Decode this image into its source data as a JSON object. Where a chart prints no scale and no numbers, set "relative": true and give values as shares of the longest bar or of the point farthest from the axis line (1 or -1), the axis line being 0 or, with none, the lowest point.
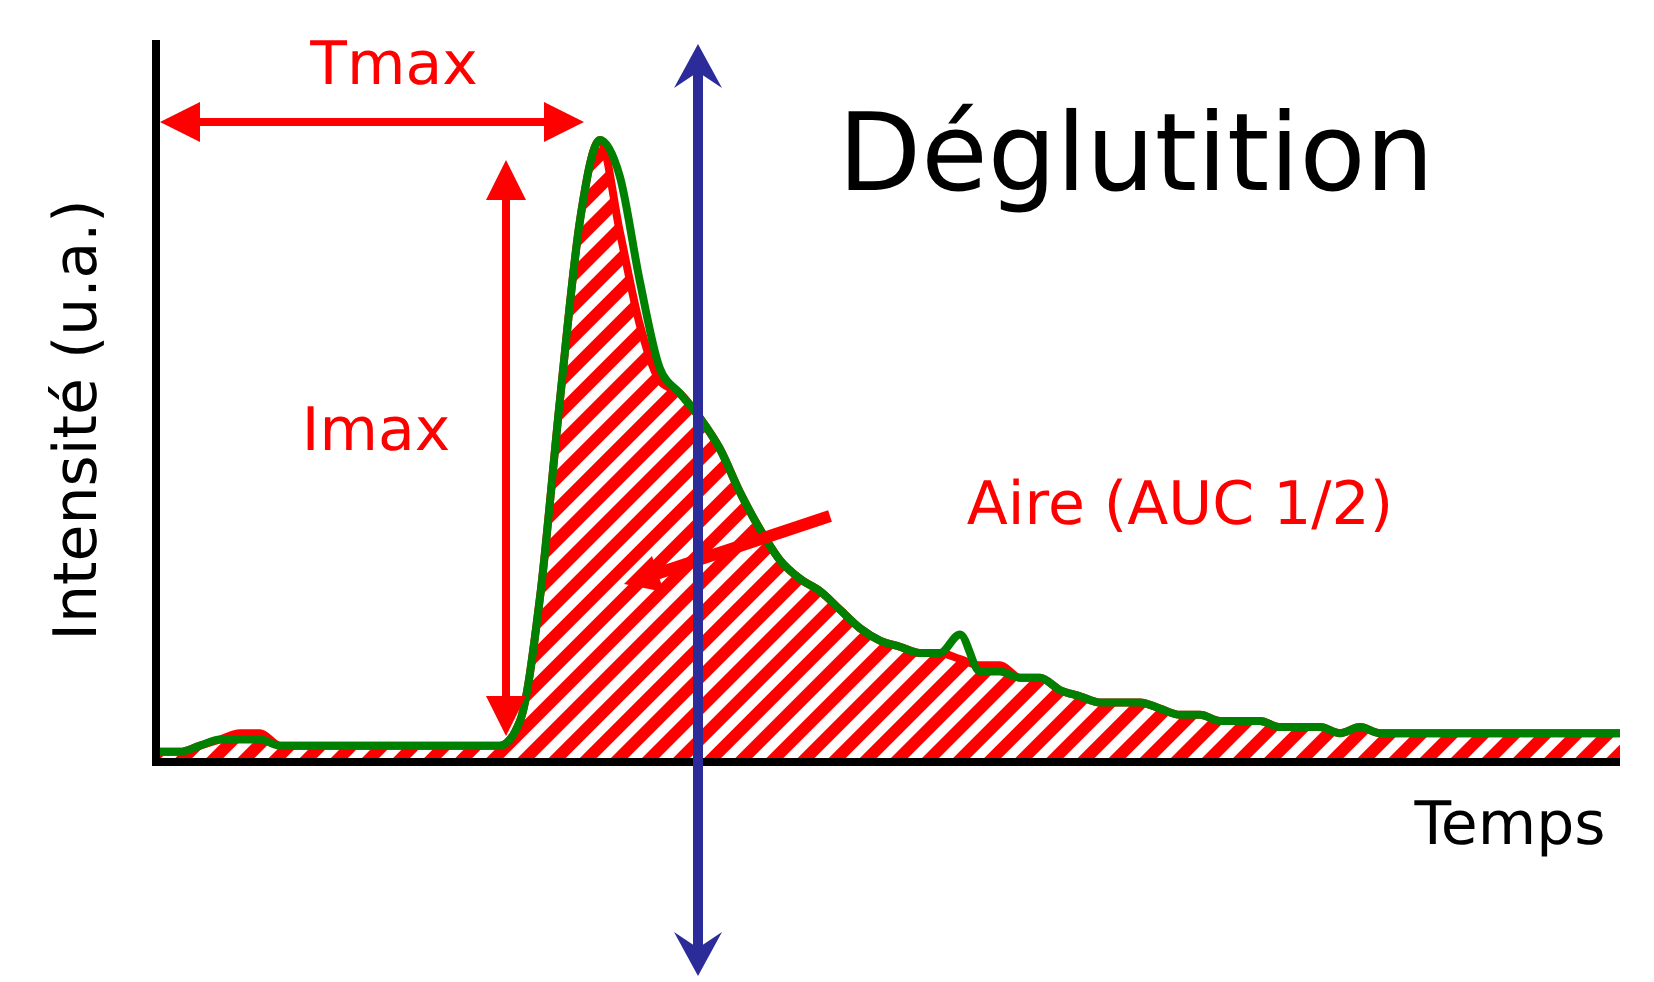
{
  "chart_data": {
    "type": "line",
    "title": "Déglutition",
    "xlabel": "Temps",
    "ylabel": "Intensité (u.a.)",
    "relative": true,
    "annotations": [
      "Tmax",
      "Imax",
      "Aire (AUC 1/2)"
    ],
    "categories": [
      null,
      null,
      null,
      null,
      null,
      null,
      null,
      null,
      null,
      null,
      null,
      null,
      null,
      null,
      null,
      null,
      null,
      null,
      null,
      null,
      null,
      null,
      null,
      null,
      null,
      null,
      null,
      null,
      null,
      null,
      null,
      null,
      null,
      null,
      null,
      null,
      null,
      null,
      null,
      null,
      null,
      null,
      null,
      null,
      null,
      null,
      null,
      null,
      null,
      null,
      null,
      null,
      null,
      null,
      null,
      null,
      null,
      null,
      null,
      null,
      null,
      null,
      null,
      null,
      null,
      null,
      null,
      null,
      null,
      null,
      null,
      null,
      null,
      null
    ],
    "series": [
      {
        "type": "area",
        "color": "#ff0000",
        "values": [
          0.01,
          0.01,
          0.02,
          0.03,
          0.04,
          0.04,
          0.02,
          0.02,
          0.02,
          0.02,
          0.02,
          0.02,
          0.02,
          0.02,
          0.02,
          0.02,
          0.02,
          0.02,
          0.06,
          0.26,
          0.58,
          0.87,
          1,
          0.85,
          0.7,
          0.61,
          0.59,
          0.55,
          0.5,
          0.43,
          0.37,
          0.32,
          0.29,
          0.27,
          0.24,
          0.21,
          0.19,
          0.18,
          0.17,
          0.17,
          0.16,
          0.15,
          0.15,
          0.13,
          0.13,
          0.11,
          0.1,
          0.09,
          0.09,
          0.09,
          0.08,
          0.07,
          0.07,
          0.06,
          0.06,
          0.06,
          0.05,
          0.05,
          0.05,
          0.04,
          0.05,
          0.04,
          0.04,
          0.04,
          0.04,
          0.04,
          0.04,
          0.04,
          0.04,
          0.04,
          0.04,
          0.04,
          0.04,
          0.04
        ]
      },
      {
        "color": "#008000",
        "values": [
          0.01,
          0.01,
          0.02,
          0.03,
          0.03,
          0.03,
          0.02,
          0.02,
          0.02,
          0.02,
          0.02,
          0.02,
          0.02,
          0.02,
          0.02,
          0.02,
          0.02,
          0.02,
          0.06,
          0.26,
          0.58,
          0.87,
          1,
          0.94,
          0.77,
          0.63,
          0.59,
          0.55,
          0.5,
          0.43,
          0.37,
          0.32,
          0.29,
          0.27,
          0.24,
          0.21,
          0.19,
          0.18,
          0.17,
          0.17,
          0.2,
          0.14,
          0.14,
          0.13,
          0.13,
          0.11,
          0.1,
          0.09,
          0.09,
          0.09,
          0.08,
          0.07,
          0.07,
          0.06,
          0.06,
          0.06,
          0.05,
          0.05,
          0.05,
          0.04,
          0.05,
          0.04,
          0.04,
          0.04,
          0.04,
          0.04,
          0.04,
          0.04,
          0.04,
          0.04,
          0.04,
          0.04,
          0.04,
          0.04
        ]
      }
    ]
  }
}
